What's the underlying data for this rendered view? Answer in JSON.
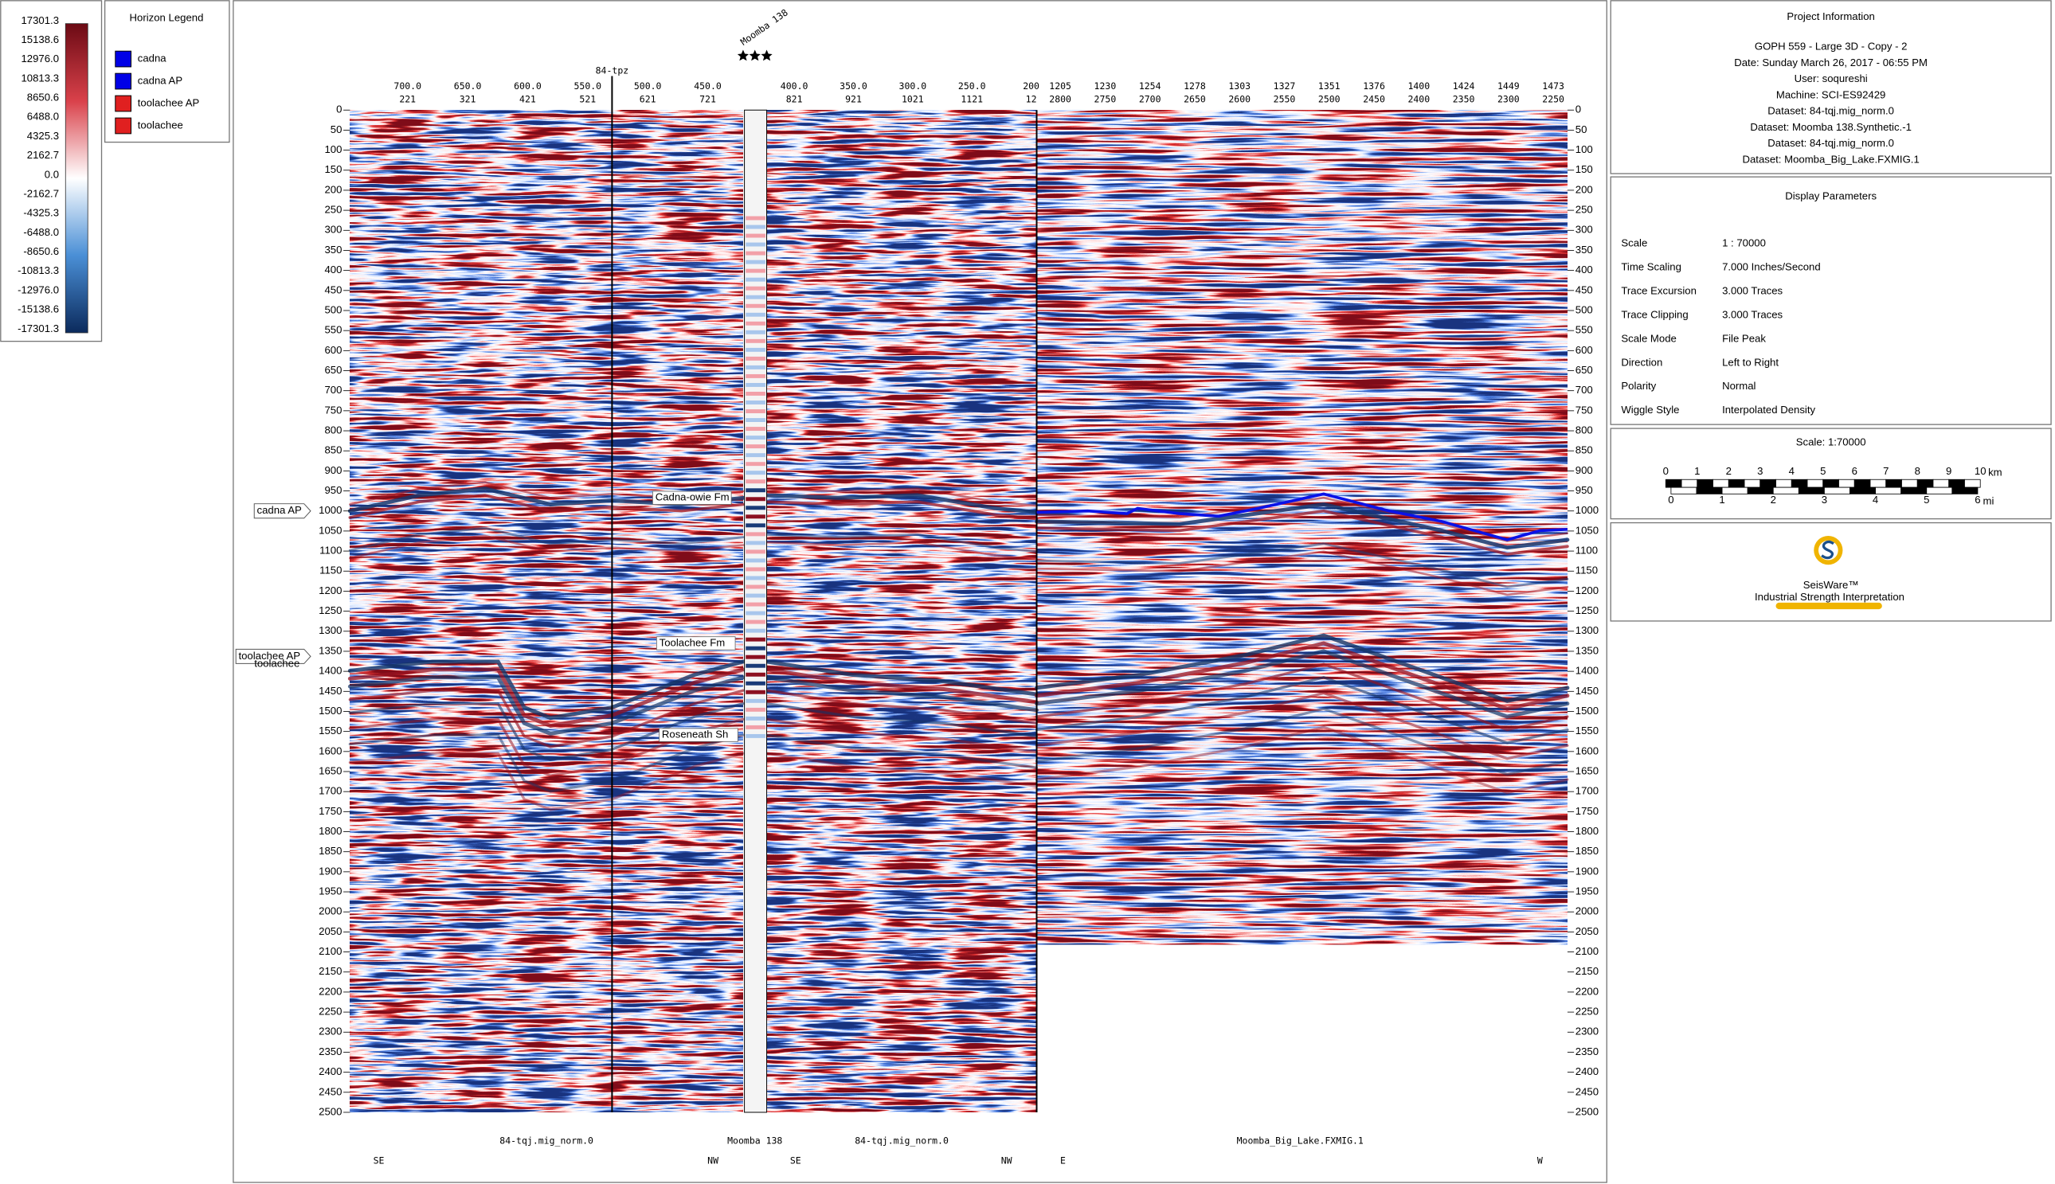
{
  "colorbar": {
    "labels": [
      "17301.3",
      "15138.6",
      "12976.0",
      "10813.3",
      "8650.6",
      "6488.0",
      "4325.3",
      "2162.7",
      "0.0",
      "-2162.7",
      "-4325.3",
      "-6488.0",
      "-8650.6",
      "-10813.3",
      "-12976.0",
      "-15138.6",
      "-17301.3"
    ]
  },
  "horizon_legend": {
    "title": "Horizon Legend",
    "items": [
      {
        "label": "cadna",
        "color": "#0000e6"
      },
      {
        "label": "cadna AP",
        "color": "#0000e6"
      },
      {
        "label": "toolachee AP",
        "color": "#e02020"
      },
      {
        "label": "toolachee",
        "color": "#e02020"
      }
    ]
  },
  "section": {
    "time_lim": [
      0,
      2500
    ],
    "time_ticks": [
      0,
      50,
      100,
      150,
      200,
      250,
      300,
      350,
      400,
      450,
      500,
      550,
      600,
      650,
      700,
      750,
      800,
      850,
      900,
      950,
      1000,
      1050,
      1100,
      1150,
      1200,
      1250,
      1300,
      1350,
      1400,
      1450,
      1500,
      1550,
      1600,
      1650,
      1700,
      1750,
      1800,
      1850,
      1900,
      1950,
      2000,
      2050,
      2100,
      2150,
      2200,
      2250,
      2300,
      2350,
      2400,
      2450,
      2500
    ],
    "well_top": "84-tpz",
    "well_name": "Moomba 138",
    "headers": [
      {
        "top": [
          "700.0",
          "650.0",
          "600.0",
          "550.0",
          "500.0",
          "450.0"
        ],
        "bottom": [
          "221",
          "321",
          "421",
          "521",
          "621",
          "721"
        ]
      },
      {
        "top": [
          "400.0",
          "350.0",
          "300.0",
          "250.0",
          "200"
        ],
        "bottom": [
          "821",
          "921",
          "1021",
          "1121",
          "12"
        ]
      },
      {
        "top": [
          "1205",
          "1230",
          "1254",
          "1278",
          "1303",
          "1327",
          "1351",
          "1376",
          "1400",
          "1424",
          "1449",
          "1473"
        ],
        "bottom": [
          "2800",
          "2750",
          "2700",
          "2650",
          "2600",
          "2550",
          "2500",
          "2450",
          "2400",
          "2350",
          "2300",
          "2250"
        ]
      }
    ],
    "horizon_tags": [
      "cadna AP",
      "toolachee AP",
      "toolachee"
    ],
    "formations": [
      "Cadna-owie Fm",
      "Toolachee Fm",
      "Roseneath Sh"
    ],
    "datasets": [
      "84-tqj.mig_norm.0",
      "Moomba 138",
      "84-tqj.mig_norm.0",
      "Moomba_Big_Lake.FXMIG.1"
    ],
    "directions": [
      "SE",
      "NW",
      "SE",
      "NW",
      "E",
      "W"
    ]
  },
  "project_info": {
    "title": "Project Information",
    "lines": [
      "GOPH 559 - Large 3D - Copy - 2",
      "Date: Sunday March 26, 2017 - 06:55 PM",
      "User: soqureshi",
      "Machine: SCI-ES92429",
      "Dataset: 84-tqj.mig_norm.0",
      "Dataset: Moomba 138.Synthetic.-1",
      "Dataset: 84-tqj.mig_norm.0",
      "Dataset: Moomba_Big_Lake.FXMIG.1"
    ]
  },
  "display_parameters": {
    "title": "Display Parameters",
    "rows": [
      [
        "Scale",
        "1 : 70000"
      ],
      [
        "Time Scaling",
        "7.000 Inches/Second"
      ],
      [
        "Trace Excursion",
        "3.000 Traces"
      ],
      [
        "Trace Clipping",
        "3.000 Traces"
      ],
      [
        "Scale Mode",
        "File Peak"
      ],
      [
        "Direction",
        "Left to Right"
      ],
      [
        "Polarity",
        "Normal"
      ],
      [
        "Wiggle Style",
        "Interpolated Density"
      ]
    ]
  },
  "scale": {
    "title": "Scale: 1:70000",
    "km_labels": [
      "0",
      "1",
      "2",
      "3",
      "4",
      "5",
      "6",
      "7",
      "8",
      "9",
      "10"
    ],
    "km_unit": "km",
    "mi_labels": [
      "0",
      "1",
      "2",
      "3",
      "4",
      "5",
      "6"
    ],
    "mi_unit": "mi"
  },
  "logo": {
    "name": "SeisWare™",
    "tagline": "Industrial Strength Interpretation"
  }
}
